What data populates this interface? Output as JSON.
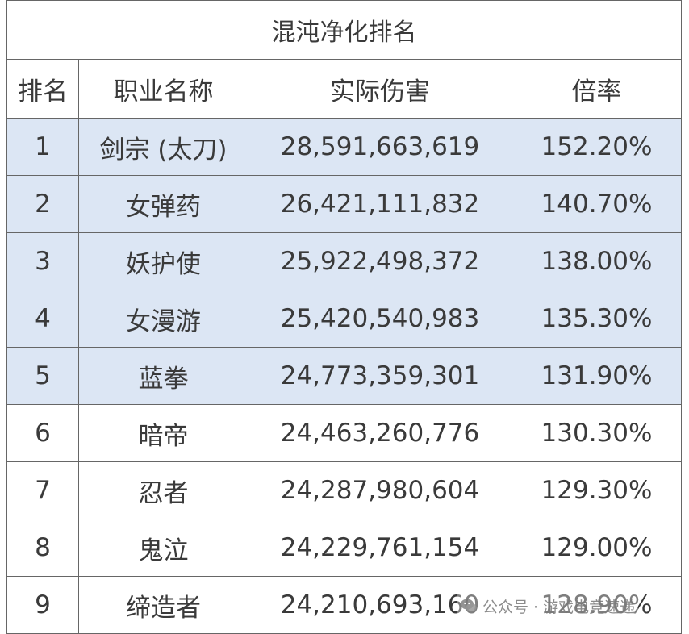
{
  "table": {
    "title": "混沌净化排名",
    "headers": [
      "排名",
      "职业名称",
      "实际伤害",
      "倍率"
    ],
    "rows": [
      {
        "rank": "1",
        "job": "剑宗 (太刀)",
        "damage": "28,591,663,619",
        "rate": "152.20%",
        "highlighted": true
      },
      {
        "rank": "2",
        "job": "女弹药",
        "damage": "26,421,111,832",
        "rate": "140.70%",
        "highlighted": true
      },
      {
        "rank": "3",
        "job": "妖护使",
        "damage": "25,922,498,372",
        "rate": "138.00%",
        "highlighted": true
      },
      {
        "rank": "4",
        "job": "女漫游",
        "damage": "25,420,540,983",
        "rate": "135.30%",
        "highlighted": true
      },
      {
        "rank": "5",
        "job": "蓝拳",
        "damage": "24,773,359,301",
        "rate": "131.90%",
        "highlighted": true
      },
      {
        "rank": "6",
        "job": "暗帝",
        "damage": "24,463,260,776",
        "rate": "130.30%",
        "highlighted": false
      },
      {
        "rank": "7",
        "job": "忍者",
        "damage": "24,287,980,604",
        "rate": "129.30%",
        "highlighted": false
      },
      {
        "rank": "8",
        "job": "鬼泣",
        "damage": "24,229,761,154",
        "rate": "129.00%",
        "highlighted": false
      },
      {
        "rank": "9",
        "job": "缔造者",
        "damage": "24,210,693,160",
        "rate": "128.90%",
        "highlighted": false
      }
    ]
  },
  "watermark": {
    "icon": "wechat-icon",
    "text": "公众号 · 游戏电竞速递"
  },
  "colors": {
    "highlight_row": "#dce6f4",
    "border": "#666666",
    "text": "#3a3a3a"
  }
}
